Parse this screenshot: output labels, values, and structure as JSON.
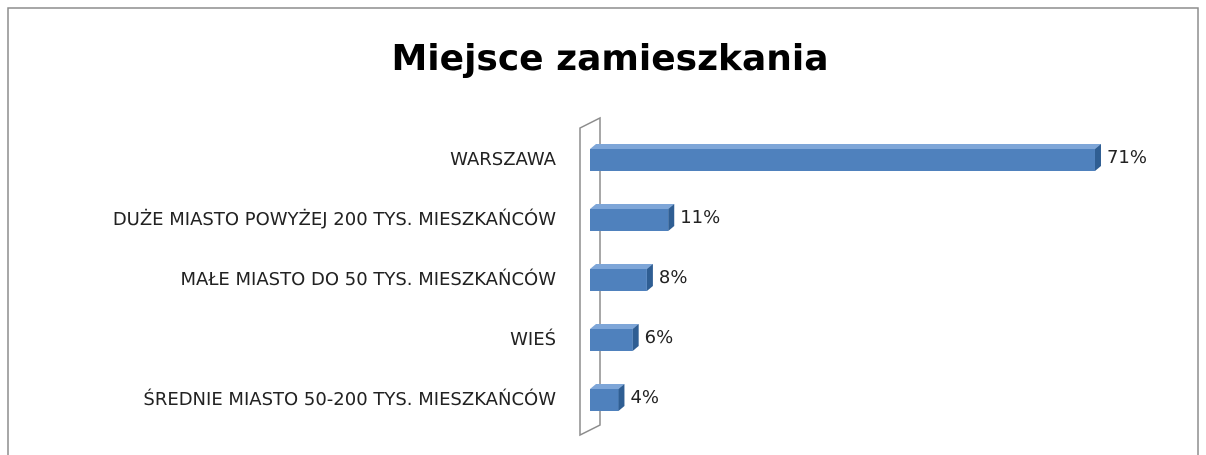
{
  "chart_data": {
    "type": "bar",
    "orientation": "horizontal",
    "title": "Miejsce zamieszkania",
    "categories": [
      "WARSZAWA",
      "DUŻE MIASTO POWYŻEJ 200 TYS. MIESZKAŃCÓW",
      "MAŁE MIASTO DO 50 TYS. MIESZKAŃCÓW",
      "WIEŚ",
      "ŚREDNIE MIASTO 50-200 TYS. MIESZKAŃCÓW"
    ],
    "values": [
      71,
      11,
      8,
      6,
      4
    ],
    "value_labels": [
      "71%",
      "11%",
      "8%",
      "6%",
      "4%"
    ],
    "color": "#4f81bd",
    "xlim": [
      0,
      80
    ]
  }
}
